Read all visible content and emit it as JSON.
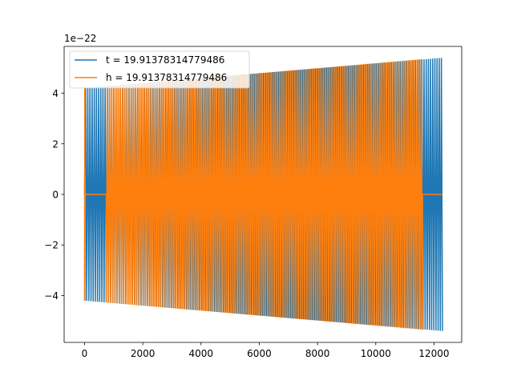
{
  "chart_data": {
    "type": "line",
    "title": "",
    "xlabel": "",
    "ylabel": "",
    "y_offset_label": "1e−22",
    "xlim": [
      -700,
      12950
    ],
    "ylim": [
      -5.85,
      5.85
    ],
    "xticks": [
      0,
      2000,
      4000,
      6000,
      8000,
      10000,
      12000
    ],
    "xtick_labels": [
      "0",
      "2000",
      "4000",
      "6000",
      "8000",
      "10000",
      "12000"
    ],
    "yticks": [
      -4,
      -2,
      0,
      2,
      4
    ],
    "ytick_labels": [
      "−4",
      "−2",
      "0",
      "2",
      "4"
    ],
    "grid": false,
    "legend_position": "top-left",
    "series": [
      {
        "name": "t = 19.91378314779486",
        "color": "#1f77b4",
        "x_start": 0,
        "x_end": 12290,
        "cycles": 165,
        "amplitude_start": 4.2,
        "amplitude_end": 5.4,
        "samples": [
          [
            0,
            0
          ],
          [
            3000,
            4.5
          ],
          [
            6000,
            4.75
          ],
          [
            9000,
            5.05
          ],
          [
            12290,
            5.4
          ]
        ]
      },
      {
        "name": "h = 19.91378314779486",
        "color": "#ff7f0e",
        "x_start": 0,
        "x_end": 11600,
        "zero_before": 750,
        "zero_after": 12290,
        "cycles": 155,
        "amplitude_start": 4.2,
        "amplitude_end": 5.35,
        "samples": [
          [
            0,
            -4.2
          ],
          [
            3000,
            4.45
          ],
          [
            6000,
            4.7
          ],
          [
            9000,
            5.0
          ],
          [
            11600,
            5.35
          ],
          [
            12290,
            0
          ]
        ]
      }
    ]
  }
}
